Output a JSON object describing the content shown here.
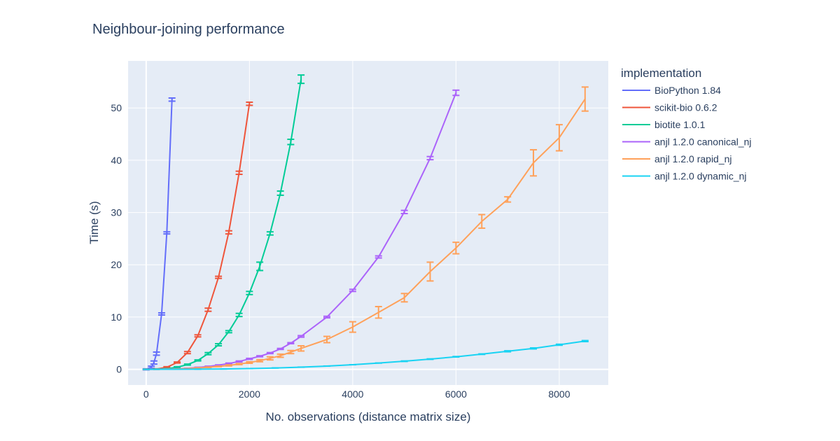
{
  "chart_data": {
    "type": "line",
    "title": "Neighbour-joining performance",
    "xlabel": "No. observations (distance matrix size)",
    "ylabel": "Time (s)",
    "xlim": [
      -350,
      8950
    ],
    "ylim": [
      -3,
      59
    ],
    "xticks": [
      0,
      2000,
      4000,
      6000,
      8000
    ],
    "yticks": [
      0,
      10,
      20,
      30,
      40,
      50
    ],
    "grid": true,
    "legend": {
      "title": "implementation",
      "position": "right"
    },
    "series": [
      {
        "name": "BioPython 1.84",
        "color": "#636efa",
        "x": [
          0,
          100,
          150,
          200,
          300,
          400,
          500
        ],
        "y": [
          0,
          0.4,
          1.3,
          3.0,
          10.6,
          26.1,
          51.6
        ],
        "err": [
          0.1,
          0.2,
          0.3,
          0.3,
          0.2,
          0.2,
          0.3
        ]
      },
      {
        "name": "scikit-bio 0.6.2",
        "color": "#ef553b",
        "x": [
          0,
          200,
          400,
          600,
          800,
          1000,
          1200,
          1400,
          1600,
          1800,
          2000
        ],
        "y": [
          0,
          0.05,
          0.4,
          1.3,
          3.2,
          6.4,
          11.4,
          17.6,
          26.2,
          37.6,
          50.8
        ],
        "err": [
          0.05,
          0.05,
          0.1,
          0.1,
          0.2,
          0.2,
          0.3,
          0.2,
          0.3,
          0.3,
          0.3
        ]
      },
      {
        "name": "biotite 1.0.1",
        "color": "#00cc96",
        "x": [
          0,
          200,
          400,
          600,
          800,
          1000,
          1200,
          1400,
          1600,
          1800,
          2000,
          2200,
          2400,
          2600,
          2800,
          3000
        ],
        "y": [
          0,
          0.02,
          0.1,
          0.4,
          0.9,
          1.7,
          3.0,
          4.7,
          7.2,
          10.4,
          14.6,
          19.7,
          26.0,
          33.7,
          43.5,
          55.5
        ],
        "err": [
          0.02,
          0.02,
          0.05,
          0.1,
          0.1,
          0.1,
          0.2,
          0.2,
          0.2,
          0.3,
          0.3,
          0.8,
          0.3,
          0.4,
          0.5,
          0.8
        ]
      },
      {
        "name": "anjl 1.2.0 canonical_nj",
        "color": "#ab63fa",
        "x": [
          0,
          200,
          400,
          600,
          800,
          1000,
          1200,
          1400,
          1600,
          1800,
          2000,
          2200,
          2400,
          2600,
          2800,
          3000,
          3500,
          4000,
          4500,
          5000,
          5500,
          6000
        ],
        "y": [
          0,
          0.01,
          0.04,
          0.1,
          0.2,
          0.35,
          0.55,
          0.8,
          1.1,
          1.5,
          2.0,
          2.5,
          3.1,
          3.9,
          5.0,
          6.3,
          10.0,
          15.1,
          21.5,
          30.1,
          40.4,
          52.9
        ],
        "err": [
          0,
          0,
          0,
          0,
          0,
          0.05,
          0.05,
          0.05,
          0.1,
          0.1,
          0.1,
          0.1,
          0.1,
          0.1,
          0.1,
          0.15,
          0.15,
          0.2,
          0.2,
          0.3,
          0.3,
          0.5
        ]
      },
      {
        "name": "anjl 1.2.0 rapid_nj",
        "color": "#ffa15a",
        "x": [
          0,
          200,
          400,
          600,
          800,
          1000,
          1200,
          1400,
          1600,
          1800,
          2000,
          2200,
          2400,
          2600,
          2800,
          3000,
          3500,
          4000,
          4500,
          5000,
          5500,
          6000,
          6500,
          7000,
          7500,
          8000,
          8500
        ],
        "y": [
          0,
          0.01,
          0.03,
          0.08,
          0.15,
          0.25,
          0.4,
          0.55,
          0.75,
          1.0,
          1.3,
          1.65,
          2.1,
          2.6,
          3.3,
          4.0,
          5.7,
          8.1,
          10.9,
          13.7,
          18.7,
          23.2,
          28.3,
          32.5,
          39.5,
          44.3,
          51.7
        ],
        "err": [
          0,
          0,
          0,
          0,
          0,
          0.05,
          0.05,
          0.05,
          0.1,
          0.1,
          0.15,
          0.2,
          0.3,
          0.3,
          0.3,
          0.5,
          0.6,
          1.0,
          1.1,
          0.8,
          1.8,
          1.1,
          1.3,
          0.5,
          2.5,
          2.5,
          2.3
        ]
      },
      {
        "name": "anjl 1.2.0 dynamic_nj",
        "color": "#19d3f3",
        "x": [
          0,
          500,
          1000,
          1500,
          2000,
          2500,
          3000,
          3500,
          4000,
          4500,
          5000,
          5500,
          6000,
          6500,
          7000,
          7500,
          8000,
          8500
        ],
        "y": [
          0,
          0.01,
          0.03,
          0.07,
          0.15,
          0.26,
          0.42,
          0.62,
          0.88,
          1.2,
          1.55,
          1.95,
          2.4,
          2.9,
          3.45,
          4.0,
          4.7,
          5.4
        ],
        "err": [
          0,
          0,
          0,
          0,
          0,
          0,
          0,
          0,
          0,
          0,
          0.05,
          0.05,
          0.05,
          0.05,
          0.1,
          0.1,
          0.1,
          0.1
        ]
      }
    ]
  }
}
